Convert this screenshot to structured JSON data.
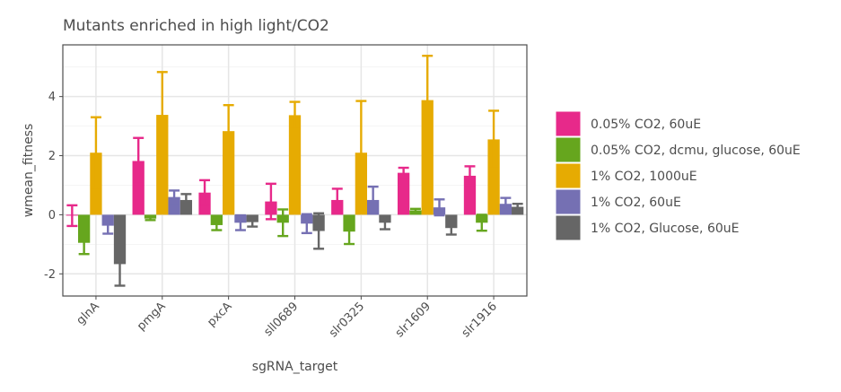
{
  "chart_data": {
    "type": "bar",
    "title": "Mutants enriched in high light/CO2",
    "xlabel": "sgRNA_target",
    "ylabel": "wmean_fitness",
    "categories": [
      "glnA",
      "pmgA",
      "pxcA",
      "sll0689",
      "slr0325",
      "slr1609",
      "slr1916"
    ],
    "ylim": [
      -2.75,
      5.75
    ],
    "yticks": [
      -2,
      0,
      2,
      4
    ],
    "grid": true,
    "legend_position": "right",
    "series": [
      {
        "name": "0.05% CO2, 60uE",
        "color": "#E7298A",
        "values": [
          -0.03,
          1.82,
          0.75,
          0.45,
          0.5,
          1.42,
          1.32
        ],
        "error": [
          0.35,
          0.78,
          0.42,
          0.6,
          0.38,
          0.17,
          0.32
        ]
      },
      {
        "name": "0.05% CO2, dcmu, glucose, 60uE",
        "color": "#66A61E",
        "values": [
          -0.95,
          -0.13,
          -0.35,
          -0.27,
          -0.57,
          0.15,
          -0.27
        ],
        "error": [
          0.38,
          0.05,
          0.17,
          0.45,
          0.42,
          0.05,
          0.27
        ]
      },
      {
        "name": "1% CO2, 1000uE",
        "color": "#E6AB02",
        "values": [
          2.1,
          3.38,
          2.83,
          3.37,
          2.1,
          3.88,
          2.55
        ],
        "error": [
          1.2,
          1.45,
          0.88,
          0.45,
          1.75,
          1.5,
          0.97
        ]
      },
      {
        "name": "1% CO2, 60uE",
        "color": "#7570B3",
        "values": [
          -0.37,
          0.6,
          -0.27,
          -0.3,
          0.5,
          0.25,
          0.37
        ],
        "error": [
          0.27,
          0.22,
          0.25,
          0.32,
          0.45,
          0.27,
          0.2
        ]
      },
      {
        "name": "1% CO2, Glucose, 60uE",
        "color": "#666666",
        "values": [
          -1.67,
          0.5,
          -0.25,
          -0.55,
          -0.27,
          -0.45,
          0.27
        ],
        "error": [
          0.73,
          0.2,
          0.15,
          0.6,
          0.22,
          0.22,
          0.1
        ]
      }
    ]
  }
}
